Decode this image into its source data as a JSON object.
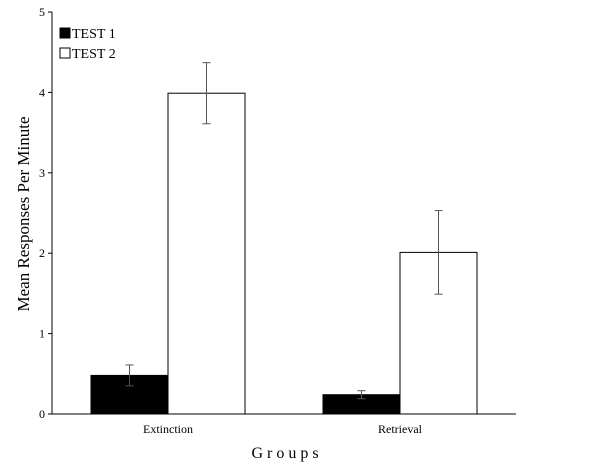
{
  "chart_data": {
    "type": "bar",
    "title": "",
    "xlabel": "G r o u p s",
    "ylabel": "Mean Responses Per Minute",
    "categories": [
      "Extinction",
      "Retrieval"
    ],
    "ylim": [
      0,
      5
    ],
    "yticks": [
      "0",
      "1",
      "2",
      "3",
      "4",
      "5"
    ],
    "legend_position": "top-left",
    "grid": false,
    "series": [
      {
        "name": "TEST 1",
        "color": "#000000",
        "values": [
          0.48,
          0.24
        ],
        "error": [
          0.13,
          0.05
        ]
      },
      {
        "name": "TEST 2",
        "color": "#ffffff",
        "values": [
          3.99,
          2.01
        ],
        "error": [
          0.38,
          0.52
        ]
      }
    ]
  }
}
